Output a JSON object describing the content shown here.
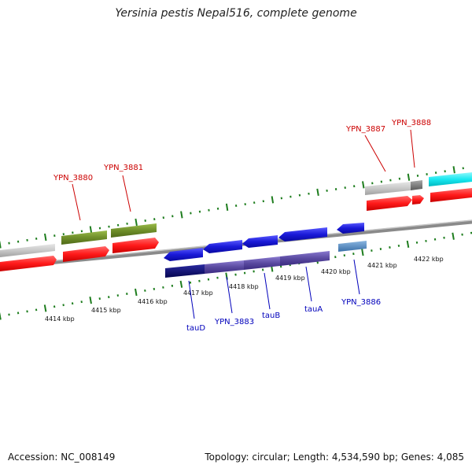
{
  "title": "Yersinia pestis Nepal516, complete genome",
  "footer": {
    "accession": "Accession: NC_008149",
    "stats": "Topology: circular; Length: 4,534,590 bp; Genes: 4,085"
  },
  "colors": {
    "tick_green": "#1e7d1e",
    "backbone_gray": "#8a8a8a",
    "red": "#ff1a1a",
    "olive": "#6f8f2a",
    "light_gray": "#c8c8c8",
    "dark_gray": "#7a7a7a",
    "cyan": "#18e8f0",
    "blue": "#1a1ad8",
    "navy": "#0a0a78",
    "purple": "#5a4aa0",
    "steel": "#4a86c0",
    "label_red": "#cc0000",
    "label_blue": "#0000bb"
  },
  "scale_labels": [
    "4414 kbp",
    "4415 kbp",
    "4416 kbp",
    "4417 kbp",
    "4418 kbp",
    "4419 kbp",
    "4420 kbp",
    "4421 kbp",
    "4422 kbp"
  ],
  "top_gene_labels": [
    "YPN_3880",
    "YPN_3881",
    "YPN_3887",
    "YPN_3888"
  ],
  "bottom_gene_labels": [
    "tauD",
    "YPN_3883",
    "tauB",
    "tauA",
    "YPN_3886"
  ]
}
